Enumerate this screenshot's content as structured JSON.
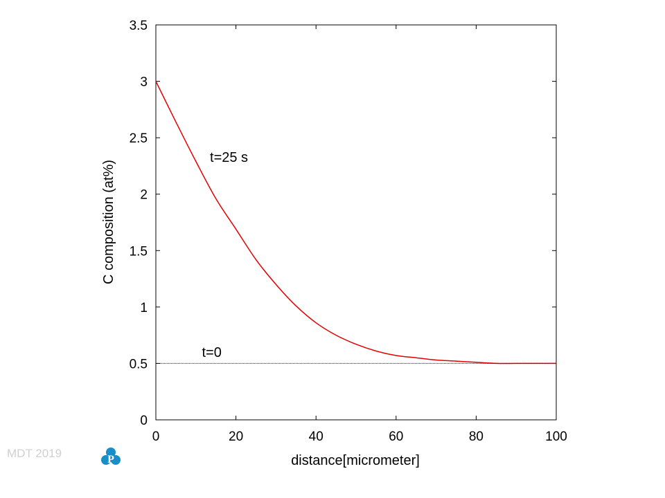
{
  "footer": {
    "text": "MDT 2019",
    "logo_letter": "P",
    "logo_color": "#1a8fc7"
  },
  "chart_data": {
    "type": "line",
    "title": "",
    "xlabel": "distance[micrometer]",
    "ylabel": "C  composition (at%)",
    "xlim": [
      0,
      100
    ],
    "ylim": [
      0,
      3.5
    ],
    "xticks": [
      "0",
      "20",
      "40",
      "60",
      "80",
      "100"
    ],
    "yticks": [
      "0",
      "0.5",
      "1",
      "1.5",
      "2",
      "2.5",
      "3",
      "3.5"
    ],
    "grid": false,
    "series": [
      {
        "name": "t=25 s",
        "color": "#e00000",
        "style": "solid",
        "x": [
          0,
          5,
          10,
          15,
          20,
          25,
          30,
          35,
          40,
          45,
          50,
          55,
          60,
          65,
          70,
          75,
          80,
          85,
          90,
          95,
          100
        ],
        "y": [
          3.0,
          2.64,
          2.29,
          1.96,
          1.69,
          1.42,
          1.2,
          1.01,
          0.86,
          0.75,
          0.67,
          0.61,
          0.57,
          0.55,
          0.53,
          0.52,
          0.51,
          0.5,
          0.5,
          0.5,
          0.5
        ]
      },
      {
        "name": "t=0",
        "color": "#00008b",
        "style": "dotted",
        "x": [
          0,
          100
        ],
        "y": [
          0.5,
          0.5
        ]
      }
    ],
    "annotations": [
      {
        "text": "t=25 s",
        "x": 13.5,
        "y": 2.33
      },
      {
        "text": "t=0",
        "x": 11.5,
        "y": 0.6
      }
    ]
  }
}
